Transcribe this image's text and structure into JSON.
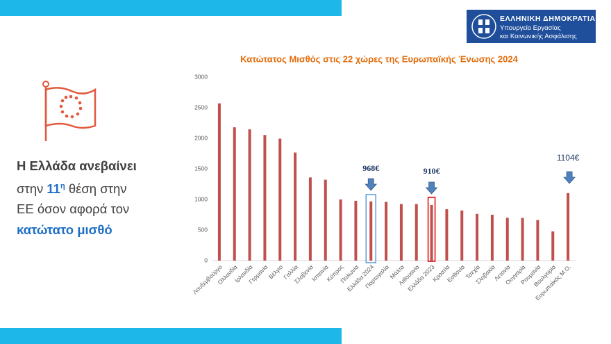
{
  "slide": {
    "logo": {
      "line1": "ΕΛΛΗΝΙΚΗ ΔΗΜΟΚΡΑΤΙΑ",
      "line2": "Υπουργείο Εργασίας",
      "line3": "και Κοινωνικής Ασφάλισης"
    },
    "headline": {
      "line1": "Η Ελλάδα ανεβαίνει",
      "line2a": "στην",
      "rank": "11",
      "rank_suffix": "η",
      "line2b": "θέση στην",
      "line3": "ΕΕ όσον αφορά τον",
      "line4": "κατώτατο μισθό"
    }
  },
  "chart_data": {
    "type": "bar",
    "title": "Κατώτατος Μισθός στις 22 χώρες της Ευρωπαϊκής Ένωσης 2024",
    "categories": [
      "Λουξεμβούργο",
      "Ολλανδία",
      "Ιρλανδία",
      "Γερμανία",
      "Βέλγιο",
      "Γαλλία",
      "Σλοβενία",
      "Ισπανία",
      "Κύπρος",
      "Πολωνία",
      "Ελλάδα 2024",
      "Πορτογαλία",
      "Μάλτα",
      "Λιθουανία",
      "Ελλάδα 2023",
      "Κροατία",
      "Εσθονία",
      "Τσεχία",
      "Σλοβακία",
      "Λετονία",
      "Ουγγαρία",
      "Ρουμανία",
      "Βουλγαρία",
      "Ευρωπαϊκός Μ.Ο."
    ],
    "values": [
      2571,
      2180,
      2146,
      2054,
      1994,
      1767,
      1360,
      1323,
      1000,
      978,
      968,
      960,
      925,
      924,
      910,
      840,
      820,
      764,
      750,
      700,
      697,
      663,
      477,
      1104
    ],
    "color": "#c0504d",
    "ylim": [
      0,
      3000
    ],
    "yticks": [
      0,
      500,
      1000,
      1500,
      2000,
      2500,
      3000
    ],
    "annotations": [
      "968€",
      "910€",
      "1104€"
    ]
  }
}
